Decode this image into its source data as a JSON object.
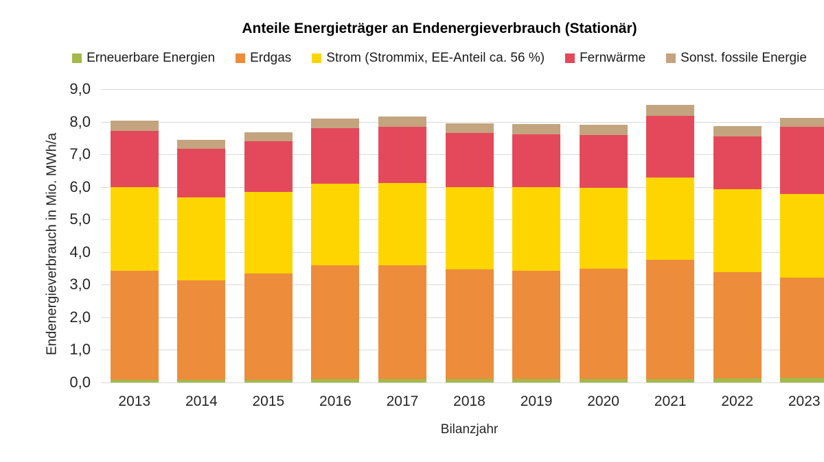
{
  "chart_data": {
    "type": "bar",
    "stacked": true,
    "title": "Anteile Energieträger an Endenergieverbrauch (Stationär)",
    "xlabel": "Bilanzjahr",
    "ylabel": "Endenergieverbrauch in Mio. MWh/a",
    "ylim": [
      0,
      9
    ],
    "ytick_step": 1,
    "grid": true,
    "legend_position": "top",
    "categories": [
      "2013",
      "2014",
      "2015",
      "2016",
      "2017",
      "2018",
      "2019",
      "2020",
      "2021",
      "2022",
      "2023"
    ],
    "series": [
      {
        "name": "Erneuerbare Energien",
        "color": "#a3b94a",
        "values": [
          0.08,
          0.08,
          0.08,
          0.1,
          0.1,
          0.1,
          0.1,
          0.1,
          0.1,
          0.12,
          0.14
        ]
      },
      {
        "name": "Erdgas",
        "color": "#ed8c3b",
        "values": [
          3.34,
          3.06,
          3.27,
          3.49,
          3.49,
          3.38,
          3.33,
          3.39,
          3.66,
          3.26,
          3.07
        ]
      },
      {
        "name": "Strom (Strommix, EE-Anteil ca. 56 %)",
        "color": "#ffd500",
        "values": [
          2.57,
          2.54,
          2.5,
          2.51,
          2.53,
          2.52,
          2.57,
          2.49,
          2.53,
          2.56,
          2.57
        ]
      },
      {
        "name": "Fernwärme",
        "color": "#e4495b",
        "values": [
          1.72,
          1.49,
          1.55,
          1.69,
          1.72,
          1.65,
          1.61,
          1.61,
          1.88,
          1.61,
          2.07
        ]
      },
      {
        "name": "Sonst. fossile Energie",
        "color": "#c3a47e",
        "values": [
          0.32,
          0.28,
          0.28,
          0.31,
          0.31,
          0.3,
          0.32,
          0.31,
          0.34,
          0.31,
          0.27
        ]
      }
    ],
    "colors": {
      "gridline": "#d9d9d9",
      "text": "#262626",
      "title": "#000000"
    }
  }
}
